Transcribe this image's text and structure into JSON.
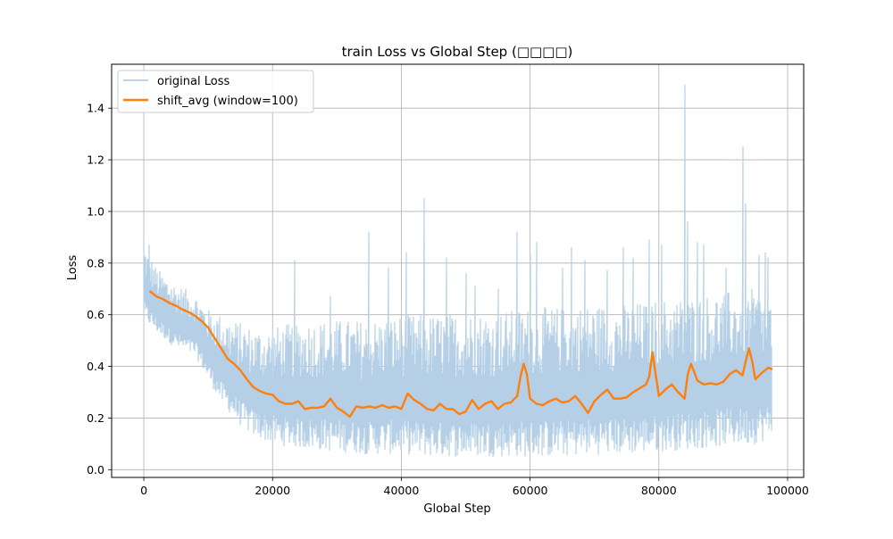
{
  "chart_data": {
    "type": "line",
    "title": "train Loss vs Global Step (□□□□)",
    "xlabel": "Global Step",
    "ylabel": "Loss",
    "xlim": [
      -5000,
      102500
    ],
    "ylim": [
      -0.03,
      1.57
    ],
    "xticks": [
      0,
      20000,
      40000,
      60000,
      80000,
      100000
    ],
    "yticks": [
      0.0,
      0.2,
      0.4,
      0.6,
      0.8,
      1.0,
      1.2,
      1.4
    ],
    "xtick_labels": [
      "0",
      "20000",
      "40000",
      "60000",
      "80000",
      "100000"
    ],
    "ytick_labels": [
      "0.0",
      "0.2",
      "0.4",
      "0.6",
      "0.8",
      "1.0",
      "1.2",
      "1.4"
    ],
    "grid": true,
    "legend_position": "top-left",
    "series": [
      {
        "name": "original Loss",
        "color": "#b5d0e6",
        "envelope_steps": [
          0,
          2000,
          5000,
          8000,
          10000,
          12000,
          15000,
          17000,
          20000,
          25000,
          30000,
          35000,
          40000,
          45000,
          50000,
          55000,
          60000,
          65000,
          70000,
          75000,
          80000,
          85000,
          90000,
          95000,
          97500
        ],
        "envelope_low": [
          0.58,
          0.53,
          0.47,
          0.44,
          0.35,
          0.26,
          0.17,
          0.13,
          0.1,
          0.08,
          0.07,
          0.06,
          0.06,
          0.05,
          0.05,
          0.05,
          0.05,
          0.05,
          0.06,
          0.06,
          0.07,
          0.08,
          0.09,
          0.1,
          0.12
        ],
        "envelope_high": [
          0.88,
          0.78,
          0.72,
          0.68,
          0.62,
          0.6,
          0.57,
          0.55,
          0.55,
          0.58,
          0.58,
          0.58,
          0.6,
          0.6,
          0.61,
          0.61,
          0.63,
          0.63,
          0.64,
          0.64,
          0.66,
          0.67,
          0.69,
          0.7,
          0.66
        ],
        "spikes": [
          {
            "step": 0,
            "value": 0.91
          },
          {
            "step": 800,
            "value": 0.87
          },
          {
            "step": 23500,
            "value": 0.81
          },
          {
            "step": 29000,
            "value": 0.67
          },
          {
            "step": 35000,
            "value": 0.92
          },
          {
            "step": 38000,
            "value": 0.78
          },
          {
            "step": 40800,
            "value": 0.84
          },
          {
            "step": 43600,
            "value": 1.05
          },
          {
            "step": 47000,
            "value": 0.82
          },
          {
            "step": 50000,
            "value": 0.76
          },
          {
            "step": 51500,
            "value": 0.71
          },
          {
            "step": 55000,
            "value": 0.7
          },
          {
            "step": 58000,
            "value": 0.92
          },
          {
            "step": 60000,
            "value": 0.83
          },
          {
            "step": 61000,
            "value": 0.88
          },
          {
            "step": 65000,
            "value": 0.78
          },
          {
            "step": 66500,
            "value": 0.86
          },
          {
            "step": 68500,
            "value": 0.81
          },
          {
            "step": 72000,
            "value": 0.77
          },
          {
            "step": 74500,
            "value": 0.86
          },
          {
            "step": 76000,
            "value": 0.82
          },
          {
            "step": 78500,
            "value": 0.89
          },
          {
            "step": 80500,
            "value": 0.87
          },
          {
            "step": 84000,
            "value": 1.49
          },
          {
            "step": 84500,
            "value": 0.96
          },
          {
            "step": 86000,
            "value": 0.88
          },
          {
            "step": 87000,
            "value": 0.87
          },
          {
            "step": 90500,
            "value": 0.78
          },
          {
            "step": 93000,
            "value": 1.25
          },
          {
            "step": 93500,
            "value": 1.03
          },
          {
            "step": 95500,
            "value": 0.83
          },
          {
            "step": 96500,
            "value": 0.84
          },
          {
            "step": 97000,
            "value": 0.82
          }
        ]
      },
      {
        "name": "shift_avg (window=100)",
        "color": "#ff7f0e",
        "x": [
          1000,
          2000,
          3000,
          4000,
          5000,
          6000,
          7000,
          8000,
          9000,
          10000,
          11000,
          12000,
          13000,
          14000,
          15000,
          16000,
          17000,
          18000,
          19000,
          20000,
          21000,
          22000,
          23000,
          24000,
          25000,
          26000,
          27000,
          28000,
          29000,
          30000,
          31000,
          32000,
          33000,
          34000,
          35000,
          36000,
          37000,
          38000,
          39000,
          40000,
          41000,
          42000,
          43000,
          44000,
          45000,
          46000,
          47000,
          48000,
          49000,
          50000,
          51000,
          52000,
          53000,
          54000,
          55000,
          56000,
          57000,
          58000,
          58500,
          59000,
          59500,
          60000,
          61000,
          62000,
          63000,
          64000,
          65000,
          66000,
          67000,
          68000,
          69000,
          70000,
          71000,
          72000,
          73000,
          74000,
          75000,
          76000,
          77000,
          78000,
          78500,
          79000,
          79500,
          80000,
          81000,
          82000,
          83000,
          84000,
          84500,
          85000,
          86000,
          87000,
          88000,
          89000,
          90000,
          91000,
          92000,
          93000,
          93500,
          94000,
          94500,
          95000,
          96000,
          97000,
          97500
        ],
        "y": [
          0.69,
          0.67,
          0.66,
          0.645,
          0.635,
          0.62,
          0.61,
          0.595,
          0.575,
          0.55,
          0.51,
          0.47,
          0.43,
          0.41,
          0.385,
          0.35,
          0.32,
          0.305,
          0.295,
          0.29,
          0.265,
          0.255,
          0.255,
          0.265,
          0.235,
          0.24,
          0.24,
          0.245,
          0.275,
          0.24,
          0.225,
          0.205,
          0.245,
          0.24,
          0.245,
          0.24,
          0.25,
          0.24,
          0.245,
          0.235,
          0.295,
          0.27,
          0.255,
          0.235,
          0.23,
          0.255,
          0.235,
          0.235,
          0.215,
          0.225,
          0.27,
          0.235,
          0.255,
          0.265,
          0.235,
          0.255,
          0.26,
          0.285,
          0.36,
          0.41,
          0.37,
          0.275,
          0.255,
          0.25,
          0.265,
          0.275,
          0.26,
          0.265,
          0.285,
          0.255,
          0.22,
          0.265,
          0.29,
          0.31,
          0.275,
          0.275,
          0.28,
          0.3,
          0.315,
          0.33,
          0.36,
          0.455,
          0.37,
          0.285,
          0.31,
          0.33,
          0.3,
          0.275,
          0.37,
          0.41,
          0.345,
          0.33,
          0.335,
          0.33,
          0.34,
          0.37,
          0.385,
          0.365,
          0.42,
          0.47,
          0.42,
          0.35,
          0.375,
          0.395,
          0.39
        ]
      }
    ]
  }
}
